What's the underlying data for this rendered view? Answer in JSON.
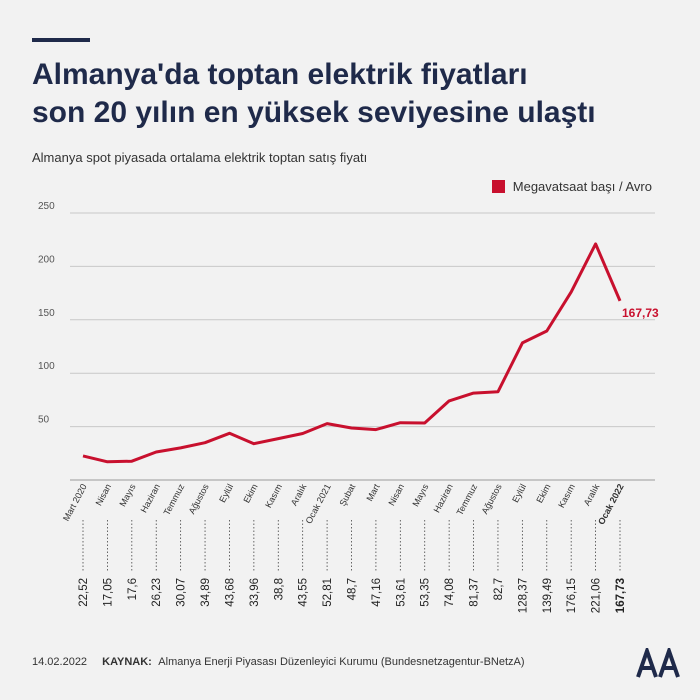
{
  "title": {
    "line1": "Almanya'da toptan elektrik fiyatları",
    "line2": "son 20 yılın en yüksek seviyesine ulaştı"
  },
  "subtitle": "Almanya spot piyasada ortalama elektrik toptan satış fiyatı",
  "legend": {
    "label": "Megavatsaat başı / Avro",
    "color": "#c8102e"
  },
  "colors": {
    "line": "#c8102e",
    "title": "#1f2a4a",
    "grid": "#c8c8c8",
    "text": "#333333"
  },
  "chart_data": {
    "type": "line",
    "title": "Almanya'da toptan elektrik fiyatları son 20 yılın en yüksek seviyesine ulaştı",
    "subtitle": "Almanya spot piyasada ortalama elektrik toptan satış fiyatı",
    "categories": [
      "Mart 2020",
      "Nisan",
      "Mayıs",
      "Haziran",
      "Temmuz",
      "Ağustos",
      "Eylül",
      "Ekim",
      "Kasım",
      "Aralık",
      "Ocak 2021",
      "Şubat",
      "Mart",
      "Nisan",
      "Mayıs",
      "Haziran",
      "Temmuz",
      "Ağustos",
      "Eylül",
      "Ekim",
      "Kasım",
      "Aralık",
      "Ocak 2022"
    ],
    "value_labels": [
      "22,52",
      "17,05",
      "17,6",
      "26,23",
      "30,07",
      "34,89",
      "43,68",
      "33,96",
      "38,8",
      "43,55",
      "52,81",
      "48,7",
      "47,16",
      "53,61",
      "53,35",
      "74,08",
      "81,37",
      "82,7",
      "128,37",
      "139,49",
      "176,15",
      "221,06",
      "167,73"
    ],
    "series": [
      {
        "name": "Megavatsaat başı / Avro",
        "values": [
          22.52,
          17.05,
          17.6,
          26.23,
          30.07,
          34.89,
          43.68,
          33.96,
          38.8,
          43.55,
          52.81,
          48.7,
          47.16,
          53.61,
          53.35,
          74.08,
          81.37,
          82.7,
          128.37,
          139.49,
          176.15,
          221.06,
          167.73
        ]
      }
    ],
    "yticks": [
      50,
      100,
      150,
      200,
      250
    ],
    "ylim": [
      0,
      250
    ],
    "grid": true,
    "last_label": "167,73",
    "bold_index": 22
  },
  "footer": {
    "date": "14.02.2022",
    "source_label": "KAYNAK:",
    "source_text": "Almanya Enerji Piyasası Düzenleyici Kurumu (Bundesnetzagentur-BNetzA)"
  },
  "logo_icon": "aa-logo-icon"
}
